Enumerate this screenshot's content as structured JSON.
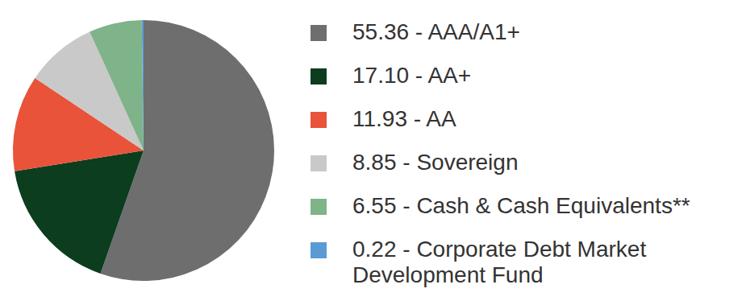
{
  "chart_data": {
    "type": "pie",
    "categories": [
      "55.36 - AAA/A1+",
      "17.10 - AA+",
      "11.93 - AA",
      "8.85 - Sovereign",
      "6.55 - Cash & Cash Equivalents**",
      "0.22 - Corporate Debt Market Development Fund"
    ],
    "values": [
      55.36,
      17.1,
      11.93,
      8.85,
      6.55,
      0.22
    ],
    "colors": [
      "#6e6e6e",
      "#0b3d1e",
      "#e8533a",
      "#c9c9c9",
      "#7fb38a",
      "#5b9bd5"
    ],
    "legend": "right"
  }
}
